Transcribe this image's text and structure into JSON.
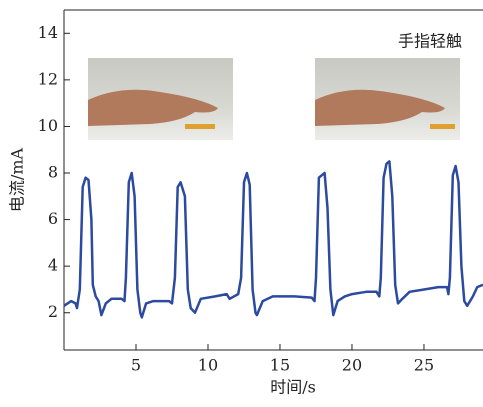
{
  "chart_data": {
    "type": "line",
    "xlabel": "时间/s",
    "ylabel": "电流/mA",
    "annotation": "手指轻触",
    "xlim": [
      0,
      29.1
    ],
    "ylim": [
      0.4,
      15
    ],
    "xticks": [
      5,
      10,
      15,
      20,
      25
    ],
    "yticks": [
      2,
      4,
      6,
      8,
      10,
      12,
      14
    ],
    "series": [
      {
        "color": "#2b4aa0",
        "x": [
          0,
          0.5,
          0.8,
          0.9,
          1.1,
          1.3,
          1.5,
          1.7,
          1.9,
          2.0,
          2.2,
          2.4,
          2.6,
          2.9,
          3.3,
          4.0,
          4.2,
          4.3,
          4.5,
          4.7,
          4.9,
          5.1,
          5.3,
          5.4,
          5.7,
          6.2,
          7.3,
          7.5,
          7.7,
          7.9,
          8.1,
          8.4,
          8.6,
          8.8,
          9.1,
          9.5,
          10.5,
          11.3,
          11.5,
          12.1,
          12.3,
          12.5,
          12.7,
          12.9,
          13.1,
          13.3,
          13.4,
          13.8,
          14.5,
          16,
          17.2,
          17.4,
          17.5,
          17.7,
          17.9,
          18.1,
          18.3,
          18.5,
          18.7,
          19.0,
          19.5,
          20,
          21,
          21.7,
          21.9,
          22.0,
          22.2,
          22.4,
          22.6,
          22.8,
          23.0,
          23.2,
          23.5,
          24,
          25,
          26,
          26.6,
          26.7,
          26.8,
          27.0,
          27.2,
          27.4,
          27.6,
          27.8,
          28.0,
          28.4,
          28.7,
          29.1
        ],
        "values": [
          2.3,
          2.5,
          2.4,
          2.2,
          3,
          7.4,
          7.8,
          7.7,
          6.0,
          3.2,
          2.7,
          2.5,
          1.9,
          2.4,
          2.6,
          2.6,
          2.5,
          3.5,
          7.6,
          8.0,
          7.0,
          3.0,
          2.0,
          1.8,
          2.4,
          2.5,
          2.5,
          2.4,
          3.5,
          7.4,
          7.6,
          7.0,
          3.0,
          2.2,
          2.0,
          2.6,
          2.7,
          2.8,
          2.6,
          2.8,
          3.5,
          7.6,
          8.0,
          7.5,
          3.0,
          2.0,
          1.9,
          2.5,
          2.7,
          2.7,
          2.65,
          2.5,
          3.5,
          7.8,
          7.9,
          8.0,
          6.5,
          3.0,
          1.9,
          2.5,
          2.7,
          2.8,
          2.9,
          2.9,
          2.7,
          3.5,
          7.8,
          8.4,
          8.5,
          7.0,
          3.2,
          2.4,
          2.6,
          2.9,
          3.0,
          3.1,
          3.1,
          2.8,
          3.5,
          7.9,
          8.3,
          7.6,
          4.0,
          2.5,
          2.3,
          2.7,
          3.1,
          3.2
        ]
      }
    ]
  }
}
